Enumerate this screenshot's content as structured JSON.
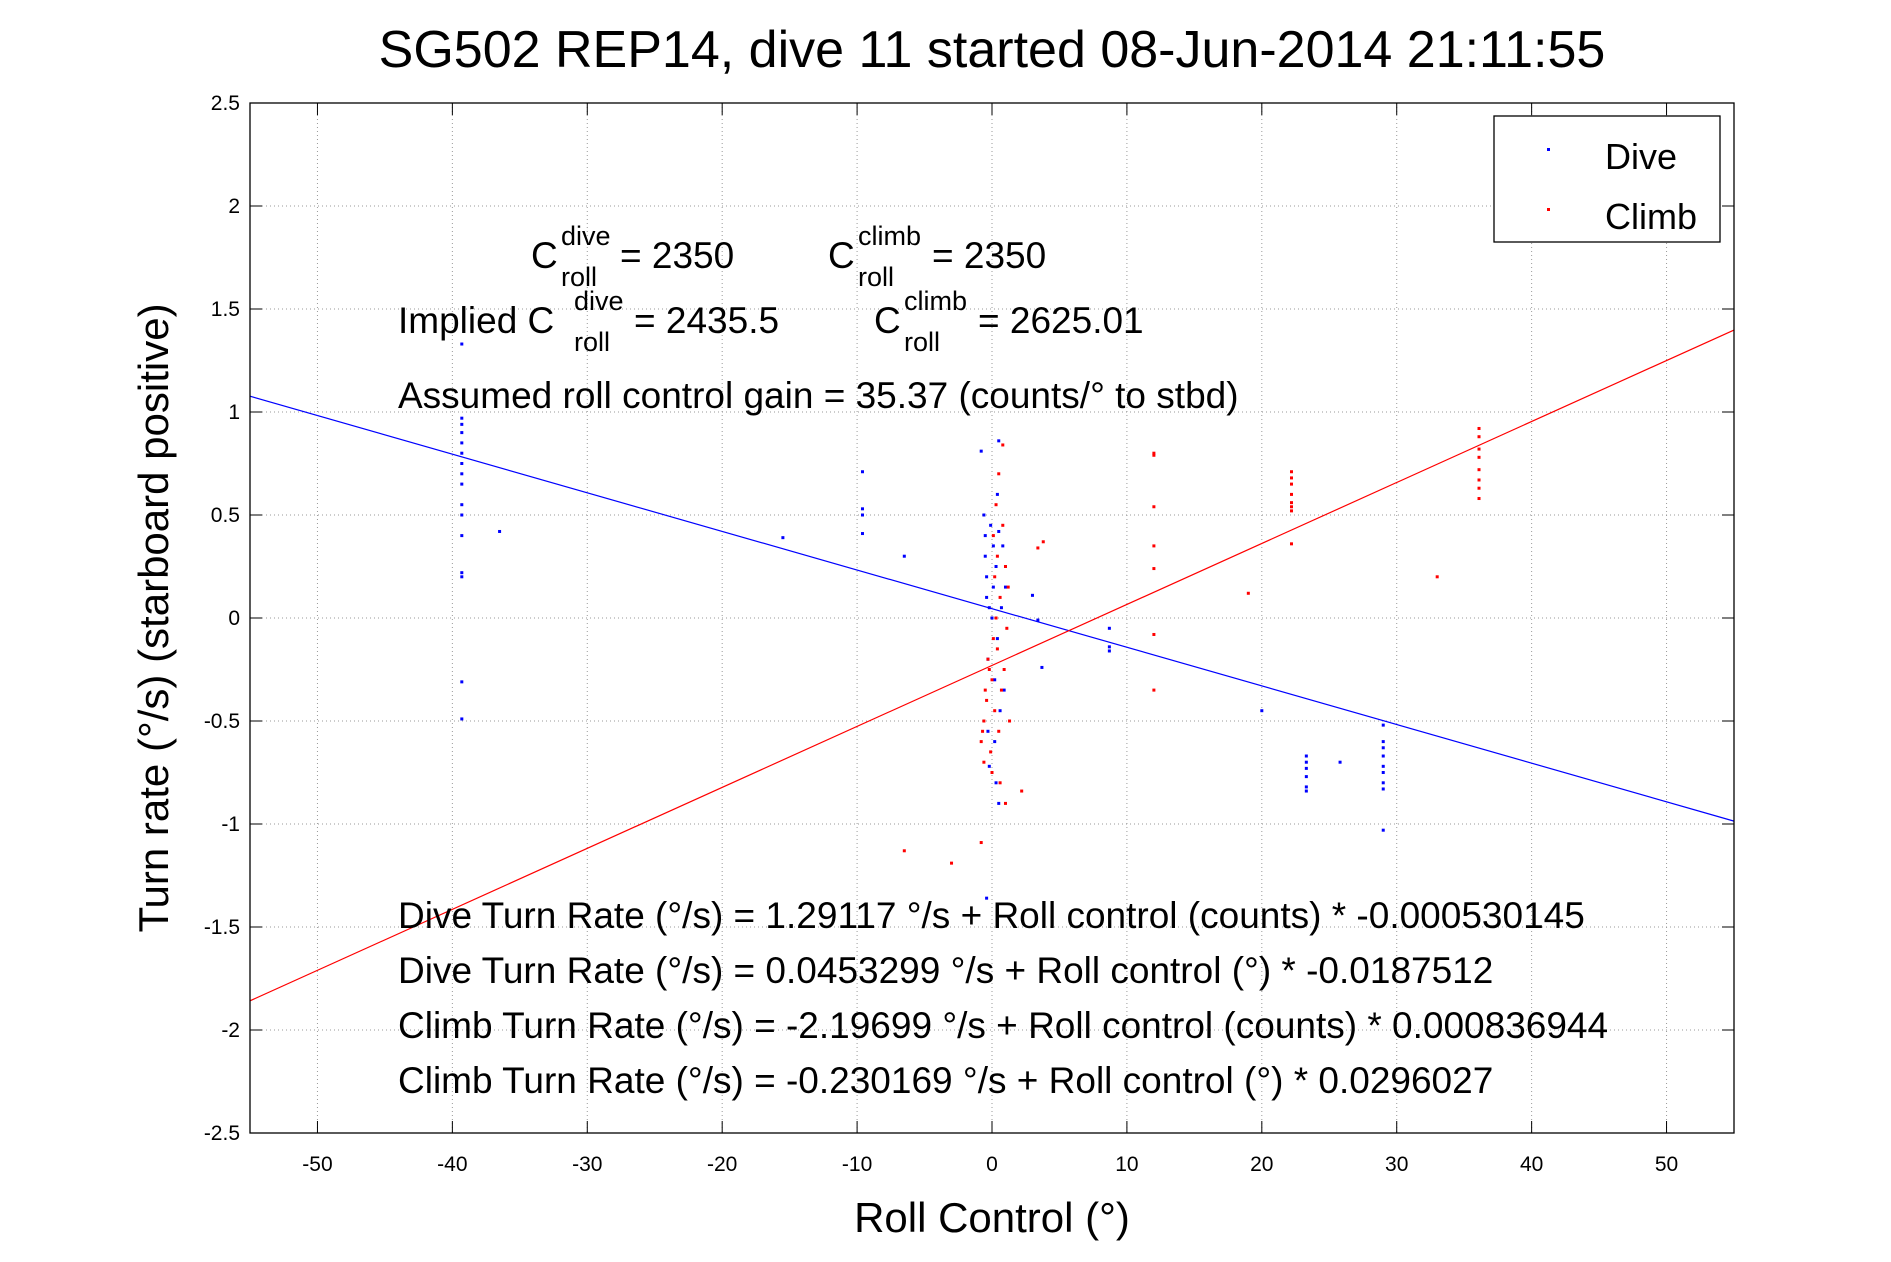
{
  "chart_data": {
    "type": "scatter",
    "title": "SG502 REP14, dive 11 started 08-Jun-2014 21:11:55",
    "xlabel": "Roll Control (°)",
    "ylabel": "Turn rate (°/s)  (starboard positive)",
    "xlim": [
      -55,
      55
    ],
    "ylim": [
      -2.5,
      2.5
    ],
    "xticks": [
      "-50",
      "-40",
      "-30",
      "-20",
      "-10",
      "0",
      "10",
      "20",
      "30",
      "40",
      "50"
    ],
    "yticks": [
      "-2.5",
      "-2",
      "-1.5",
      "-1",
      "-0.5",
      "0",
      "0.5",
      "1",
      "1.5",
      "2",
      "2.5"
    ],
    "grid": true,
    "legend_position": "top-right",
    "colors": {
      "dive": "#0000ff",
      "climb": "#ff0000"
    },
    "series": [
      {
        "name": "Dive",
        "points": [
          [
            -39.3,
            1.33
          ],
          [
            -39.3,
            0.97
          ],
          [
            -39.3,
            0.94
          ],
          [
            -39.3,
            0.9
          ],
          [
            -39.3,
            0.85
          ],
          [
            -39.3,
            0.8
          ],
          [
            -39.3,
            0.75
          ],
          [
            -39.3,
            0.7
          ],
          [
            -39.3,
            0.65
          ],
          [
            -39.3,
            0.55
          ],
          [
            -39.3,
            0.5
          ],
          [
            -39.3,
            0.4
          ],
          [
            -39.3,
            0.22
          ],
          [
            -39.3,
            0.2
          ],
          [
            -39.3,
            -0.31
          ],
          [
            -39.3,
            -0.49
          ],
          [
            -36.5,
            0.42
          ],
          [
            -15.5,
            0.39
          ],
          [
            -9.6,
            0.71
          ],
          [
            -9.6,
            0.53
          ],
          [
            -9.6,
            0.5
          ],
          [
            -9.6,
            0.41
          ],
          [
            -6.5,
            0.3
          ],
          [
            -0.8,
            0.81
          ],
          [
            -0.6,
            0.5
          ],
          [
            -0.5,
            0.4
          ],
          [
            -0.5,
            0.3
          ],
          [
            -0.4,
            0.2
          ],
          [
            -0.4,
            0.1
          ],
          [
            -0.3,
            -0.2
          ],
          [
            -0.3,
            -0.55
          ],
          [
            -0.2,
            -0.72
          ],
          [
            -0.2,
            0.05
          ],
          [
            -0.1,
            0.45
          ],
          [
            0.0,
            0.0
          ],
          [
            0.1,
            0.35
          ],
          [
            0.1,
            0.15
          ],
          [
            0.2,
            -0.3
          ],
          [
            0.2,
            -0.6
          ],
          [
            0.3,
            0.25
          ],
          [
            0.3,
            -0.8
          ],
          [
            0.4,
            0.6
          ],
          [
            0.4,
            -0.1
          ],
          [
            0.5,
            -0.9
          ],
          [
            0.5,
            0.86
          ],
          [
            0.5,
            0.42
          ],
          [
            0.6,
            -0.45
          ],
          [
            0.7,
            0.05
          ],
          [
            0.8,
            0.35
          ],
          [
            0.9,
            -0.35
          ],
          [
            1.0,
            0.15
          ],
          [
            -0.4,
            -1.36
          ],
          [
            3.0,
            0.11
          ],
          [
            3.4,
            -0.01
          ],
          [
            3.7,
            -0.24
          ],
          [
            8.7,
            -0.05
          ],
          [
            8.7,
            -0.14
          ],
          [
            8.7,
            -0.16
          ],
          [
            20.0,
            -0.45
          ],
          [
            23.3,
            -0.67
          ],
          [
            23.3,
            -0.7
          ],
          [
            23.3,
            -0.73
          ],
          [
            23.3,
            -0.77
          ],
          [
            23.3,
            -0.82
          ],
          [
            23.3,
            -0.84
          ],
          [
            25.8,
            -0.7
          ],
          [
            29.0,
            -0.52
          ],
          [
            29.0,
            -0.6
          ],
          [
            29.0,
            -0.63
          ],
          [
            29.0,
            -0.67
          ],
          [
            29.0,
            -0.72
          ],
          [
            29.0,
            -0.75
          ],
          [
            29.0,
            -0.8
          ],
          [
            29.0,
            -0.83
          ],
          [
            29.0,
            -1.03
          ]
        ],
        "fit_line": {
          "intercept": 0.0453299,
          "slope": -0.0187512
        }
      },
      {
        "name": "Climb",
        "points": [
          [
            -6.5,
            -1.13
          ],
          [
            -3.0,
            -1.19
          ],
          [
            -0.8,
            -1.09
          ],
          [
            -0.8,
            -0.6
          ],
          [
            -0.7,
            -0.55
          ],
          [
            -0.6,
            -0.5
          ],
          [
            -0.6,
            -0.7
          ],
          [
            -0.5,
            -0.35
          ],
          [
            -0.4,
            -0.4
          ],
          [
            -0.3,
            -0.2
          ],
          [
            -0.2,
            -0.25
          ],
          [
            -0.1,
            -0.65
          ],
          [
            0.0,
            -0.75
          ],
          [
            0.0,
            -0.3
          ],
          [
            0.1,
            -0.1
          ],
          [
            0.1,
            0.4
          ],
          [
            0.2,
            0.2
          ],
          [
            0.2,
            -0.45
          ],
          [
            0.3,
            0.0
          ],
          [
            0.3,
            0.55
          ],
          [
            0.4,
            -0.15
          ],
          [
            0.4,
            0.3
          ],
          [
            0.5,
            0.7
          ],
          [
            0.5,
            -0.55
          ],
          [
            0.6,
            0.1
          ],
          [
            0.6,
            -0.8
          ],
          [
            0.7,
            -0.35
          ],
          [
            0.8,
            0.84
          ],
          [
            0.8,
            0.45
          ],
          [
            0.9,
            -0.25
          ],
          [
            1.0,
            0.25
          ],
          [
            1.0,
            -0.9
          ],
          [
            1.1,
            -0.05
          ],
          [
            1.2,
            0.15
          ],
          [
            1.3,
            -0.5
          ],
          [
            2.2,
            -0.84
          ],
          [
            3.4,
            0.34
          ],
          [
            3.8,
            0.37
          ],
          [
            12.0,
            0.8
          ],
          [
            12.0,
            0.79
          ],
          [
            12.0,
            0.54
          ],
          [
            12.0,
            0.35
          ],
          [
            12.0,
            0.24
          ],
          [
            12.0,
            -0.08
          ],
          [
            12.0,
            -0.35
          ],
          [
            19.0,
            0.12
          ],
          [
            22.2,
            0.71
          ],
          [
            22.2,
            0.68
          ],
          [
            22.2,
            0.65
          ],
          [
            22.2,
            0.6
          ],
          [
            22.2,
            0.56
          ],
          [
            22.2,
            0.54
          ],
          [
            22.2,
            0.52
          ],
          [
            22.2,
            0.36
          ],
          [
            33.0,
            0.2
          ],
          [
            36.1,
            0.92
          ],
          [
            36.1,
            0.88
          ],
          [
            36.1,
            0.82
          ],
          [
            36.1,
            0.78
          ],
          [
            36.1,
            0.72
          ],
          [
            36.1,
            0.67
          ],
          [
            36.1,
            0.63
          ],
          [
            36.1,
            0.58
          ]
        ],
        "fit_line": {
          "intercept": -0.230169,
          "slope": 0.0296027
        }
      }
    ],
    "annotations": {
      "c_dive": {
        "main": "C",
        "sup": "dive",
        "sub": "roll",
        "rest": " = 2350"
      },
      "c_climb": {
        "main": "C",
        "sup": "climb",
        "sub": "roll",
        "rest": " = 2350"
      },
      "implied_dive": {
        "prefix": "Implied C",
        "sup": "dive",
        "sub": "roll",
        "rest": " = 2435.5"
      },
      "implied_climb": {
        "main": "C",
        "sup": "climb",
        "sub": "roll",
        "rest": " = 2625.01"
      },
      "gain": "Assumed roll control gain = 35.37 (counts/° to stbd)",
      "eq1": "Dive Turn Rate (°/s) = 1.29117 °/s + Roll control (counts) * -0.000530145",
      "eq2": "Dive Turn Rate (°/s) = 0.0453299 °/s + Roll control (°) * -0.0187512",
      "eq3": "Climb Turn Rate (°/s) = -2.19699 °/s + Roll control (counts) * 0.000836944",
      "eq4": "Climb Turn Rate (°/s) = -0.230169 °/s + Roll control (°) * 0.0296027"
    }
  }
}
